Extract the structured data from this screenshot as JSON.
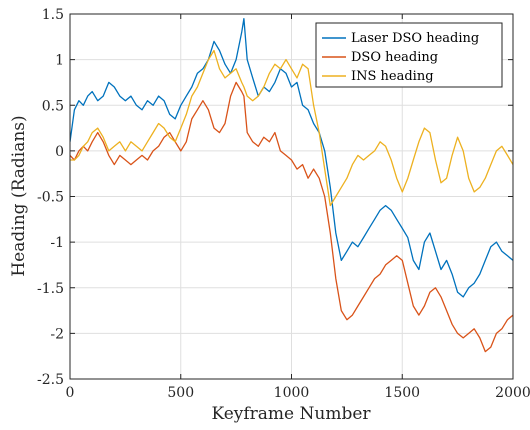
{
  "chart_data": {
    "type": "line",
    "title": "",
    "xlabel": "Keyframe Number",
    "ylabel": "Heading (Radians)",
    "xlim": [
      0,
      2000
    ],
    "ylim": [
      -2.5,
      1.5
    ],
    "xticks": [
      0,
      500,
      1000,
      1500,
      2000
    ],
    "xtick_labels": [
      "0",
      "500",
      "1000",
      "1500",
      "2000"
    ],
    "yticks": [
      -2.5,
      -2,
      -1.5,
      -1,
      -0.5,
      0,
      0.5,
      1,
      1.5
    ],
    "ytick_labels": [
      "-2.5",
      "-2",
      "-1.5",
      "-1",
      "-0.5",
      "0",
      "0.5",
      "1",
      "1.5"
    ],
    "grid": true,
    "legend_position": "top-right",
    "series": [
      {
        "name": "Laser DSO heading",
        "color": "#0072BD",
        "x": [
          0,
          20,
          40,
          60,
          80,
          100,
          125,
          150,
          175,
          200,
          225,
          250,
          275,
          300,
          325,
          350,
          375,
          400,
          425,
          450,
          475,
          500,
          525,
          550,
          575,
          600,
          625,
          650,
          675,
          700,
          725,
          750,
          775,
          785,
          800,
          825,
          850,
          875,
          900,
          925,
          950,
          975,
          1000,
          1025,
          1050,
          1075,
          1100,
          1125,
          1150,
          1175,
          1200,
          1225,
          1250,
          1275,
          1300,
          1325,
          1350,
          1375,
          1400,
          1425,
          1450,
          1475,
          1500,
          1525,
          1550,
          1575,
          1600,
          1625,
          1650,
          1675,
          1700,
          1725,
          1750,
          1775,
          1800,
          1825,
          1850,
          1875,
          1900,
          1925,
          1950,
          1975,
          2000
        ],
        "y": [
          0.1,
          0.45,
          0.55,
          0.5,
          0.6,
          0.65,
          0.55,
          0.6,
          0.75,
          0.7,
          0.6,
          0.55,
          0.6,
          0.5,
          0.45,
          0.55,
          0.5,
          0.6,
          0.55,
          0.4,
          0.35,
          0.5,
          0.6,
          0.7,
          0.85,
          0.9,
          1.0,
          1.2,
          1.1,
          0.95,
          0.85,
          1.0,
          1.3,
          1.45,
          1.0,
          0.8,
          0.6,
          0.7,
          0.65,
          0.75,
          0.9,
          0.85,
          0.7,
          0.75,
          0.5,
          0.45,
          0.3,
          0.2,
          0.0,
          -0.4,
          -0.9,
          -1.2,
          -1.1,
          -1.0,
          -1.05,
          -0.95,
          -0.85,
          -0.75,
          -0.65,
          -0.6,
          -0.65,
          -0.75,
          -0.85,
          -0.95,
          -1.2,
          -1.3,
          -1.0,
          -0.9,
          -1.1,
          -1.3,
          -1.2,
          -1.35,
          -1.55,
          -1.6,
          -1.5,
          -1.45,
          -1.35,
          -1.2,
          -1.05,
          -1.0,
          -1.1,
          -1.15,
          -1.2
        ]
      },
      {
        "name": "DSO heading",
        "color": "#D95319",
        "x": [
          0,
          20,
          40,
          60,
          80,
          100,
          125,
          150,
          175,
          200,
          225,
          250,
          275,
          300,
          325,
          350,
          375,
          400,
          425,
          450,
          475,
          500,
          525,
          550,
          575,
          600,
          625,
          650,
          675,
          700,
          725,
          750,
          775,
          785,
          800,
          825,
          850,
          875,
          900,
          925,
          950,
          975,
          1000,
          1025,
          1050,
          1075,
          1100,
          1125,
          1150,
          1175,
          1200,
          1225,
          1250,
          1275,
          1300,
          1325,
          1350,
          1375,
          1400,
          1425,
          1450,
          1475,
          1500,
          1525,
          1550,
          1575,
          1600,
          1625,
          1650,
          1675,
          1700,
          1725,
          1750,
          1775,
          1800,
          1825,
          1850,
          1875,
          1900,
          1925,
          1950,
          1975,
          2000
        ],
        "y": [
          -0.05,
          -0.1,
          0.0,
          0.05,
          0.0,
          0.1,
          0.2,
          0.1,
          -0.05,
          -0.15,
          -0.05,
          -0.1,
          -0.15,
          -0.1,
          -0.05,
          -0.1,
          0.0,
          0.05,
          0.15,
          0.2,
          0.1,
          0.0,
          0.1,
          0.35,
          0.45,
          0.55,
          0.45,
          0.25,
          0.2,
          0.3,
          0.6,
          0.75,
          0.65,
          0.6,
          0.2,
          0.1,
          0.05,
          0.15,
          0.1,
          0.2,
          0.0,
          -0.05,
          -0.1,
          -0.2,
          -0.15,
          -0.3,
          -0.2,
          -0.3,
          -0.5,
          -0.9,
          -1.4,
          -1.75,
          -1.85,
          -1.8,
          -1.7,
          -1.6,
          -1.5,
          -1.4,
          -1.35,
          -1.25,
          -1.2,
          -1.15,
          -1.2,
          -1.45,
          -1.7,
          -1.8,
          -1.7,
          -1.55,
          -1.5,
          -1.6,
          -1.75,
          -1.9,
          -2.0,
          -2.05,
          -2.0,
          -1.95,
          -2.05,
          -2.2,
          -2.15,
          -2.0,
          -1.95,
          -1.85,
          -1.8
        ]
      },
      {
        "name": "INS heading",
        "color": "#EDB120",
        "x": [
          0,
          20,
          40,
          60,
          80,
          100,
          125,
          150,
          175,
          200,
          225,
          250,
          275,
          300,
          325,
          350,
          375,
          400,
          425,
          450,
          475,
          500,
          525,
          550,
          575,
          600,
          625,
          650,
          675,
          700,
          725,
          750,
          775,
          785,
          800,
          825,
          850,
          875,
          900,
          925,
          950,
          975,
          1000,
          1025,
          1050,
          1075,
          1100,
          1125,
          1150,
          1175,
          1200,
          1225,
          1250,
          1275,
          1300,
          1325,
          1350,
          1375,
          1400,
          1425,
          1450,
          1475,
          1500,
          1525,
          1550,
          1575,
          1600,
          1625,
          1650,
          1675,
          1700,
          1725,
          1750,
          1775,
          1800,
          1825,
          1850,
          1875,
          1900,
          1925,
          1950,
          1975,
          2000
        ],
        "y": [
          -0.1,
          -0.1,
          -0.05,
          0.05,
          0.1,
          0.2,
          0.25,
          0.15,
          0.0,
          0.05,
          0.1,
          0.0,
          0.1,
          0.05,
          0.0,
          0.1,
          0.2,
          0.3,
          0.25,
          0.15,
          0.1,
          0.25,
          0.4,
          0.6,
          0.7,
          0.85,
          1.0,
          1.1,
          0.9,
          0.8,
          0.85,
          0.9,
          0.75,
          0.7,
          0.6,
          0.55,
          0.6,
          0.7,
          0.85,
          0.95,
          0.9,
          1.0,
          0.9,
          0.8,
          0.95,
          0.9,
          0.5,
          0.2,
          -0.2,
          -0.6,
          -0.5,
          -0.4,
          -0.3,
          -0.15,
          -0.05,
          -0.1,
          -0.05,
          0.0,
          0.1,
          0.05,
          -0.1,
          -0.3,
          -0.45,
          -0.3,
          -0.1,
          0.1,
          0.25,
          0.2,
          -0.1,
          -0.35,
          -0.3,
          -0.05,
          0.15,
          0.0,
          -0.3,
          -0.45,
          -0.4,
          -0.3,
          -0.15,
          0.0,
          0.05,
          -0.05,
          -0.15
        ]
      }
    ]
  }
}
